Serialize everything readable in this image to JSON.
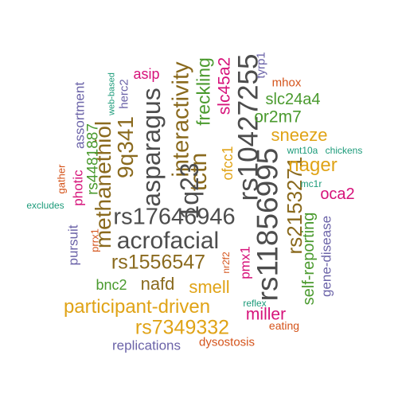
{
  "colors": {
    "gray": "#4d4d4d",
    "brown": "#8a6a1e",
    "gold": "#e0a316",
    "green": "#4a9a2e",
    "magenta": "#d6127a",
    "purple": "#6b63a8",
    "orange": "#d4531a",
    "teal": "#1c9b7a"
  },
  "words": {
    "asparagus": "asparagus",
    "interactivity": "interactivity",
    "freckling": "freckling",
    "rs10427255": "rs10427255",
    "slc45a2": "slc45a2",
    "tyrp1": "tyrp1",
    "asip": "asip",
    "herc2": "herc2",
    "web_based": "web-based",
    "mhox": "mhox",
    "slc24a4": "slc24a4",
    "or2m7": "or2m7",
    "sneeze": "sneeze",
    "nager": "nager",
    "q9q341": "9q341",
    "tctn": "tctn",
    "methanethiol": "methanethiol",
    "rs4481887": "rs4481887",
    "assortment": "assortment",
    "ofcc1": "ofcc1",
    "rs11856995": "rs11856995",
    "rs2153271": "rs2153271",
    "wnt10a": "wnt10a",
    "chickens": "chickens",
    "mc1r": "mc1r",
    "oca2": "oca2",
    "gather": "gather",
    "photic": "photic",
    "q1q23": "1q23",
    "excludes": "excludes",
    "rs17646946": "rs17646946",
    "acrofacial": "acrofacial",
    "pursuit": "pursuit",
    "prrx1": "prrx1",
    "rs1556547": "rs1556547",
    "nr2f2": "nr2f2",
    "pmx1": "pmx1",
    "self_reporting": "self-reporting",
    "gene_disease": "gene-disease",
    "bnc2": "bnc2",
    "nafd": "nafd",
    "smell": "smell",
    "participant_driven": "participant-driven",
    "reflex": "reflex",
    "miller": "miller",
    "rs7349332": "rs7349332",
    "eating": "eating",
    "replications": "replications",
    "dysostosis": "dysostosis"
  }
}
